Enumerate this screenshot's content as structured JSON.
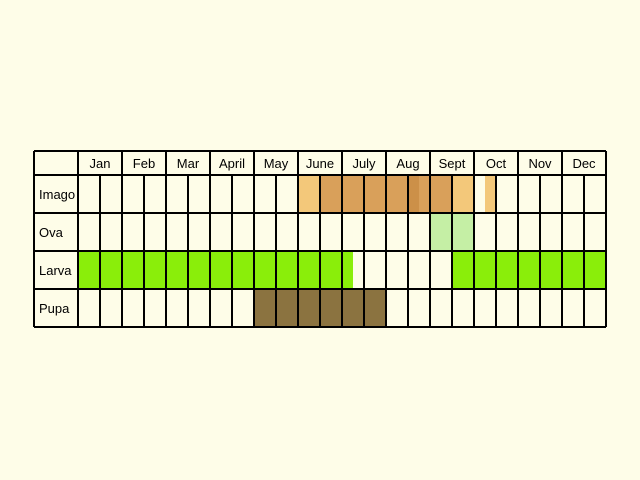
{
  "chart_data": {
    "type": "table",
    "title": "",
    "months": [
      "Jan",
      "Feb",
      "Mar",
      "April",
      "May",
      "June",
      "July",
      "Aug",
      "Sept",
      "Oct",
      "Nov",
      "Dec"
    ],
    "rows": [
      {
        "label": "Imago",
        "segments": [
          {
            "start": 5.0,
            "end": 5.5,
            "color": "#f3c87a"
          },
          {
            "start": 5.5,
            "end": 7.5,
            "color": "#d9a05a"
          },
          {
            "start": 7.5,
            "end": 7.75,
            "color": "#cc9048"
          },
          {
            "start": 7.75,
            "end": 8.5,
            "color": "#d9a05a"
          },
          {
            "start": 8.5,
            "end": 9.0,
            "color": "#f3c87a"
          },
          {
            "start": 9.25,
            "end": 9.5,
            "color": "#f3c87a"
          }
        ]
      },
      {
        "label": "Ova",
        "segments": [
          {
            "start": 8.0,
            "end": 9.0,
            "color": "#c5efa5"
          }
        ]
      },
      {
        "label": "Larva",
        "segments": [
          {
            "start": 0.0,
            "end": 6.25,
            "color": "#8aee0a"
          },
          {
            "start": 8.5,
            "end": 12.0,
            "color": "#8aee0a"
          }
        ]
      },
      {
        "label": "Pupa",
        "segments": [
          {
            "start": 4.0,
            "end": 7.0,
            "color": "#8b7340"
          }
        ]
      }
    ],
    "cell_fill": "#fefde8",
    "background": "#fefde8",
    "grid_color": "#000000"
  }
}
